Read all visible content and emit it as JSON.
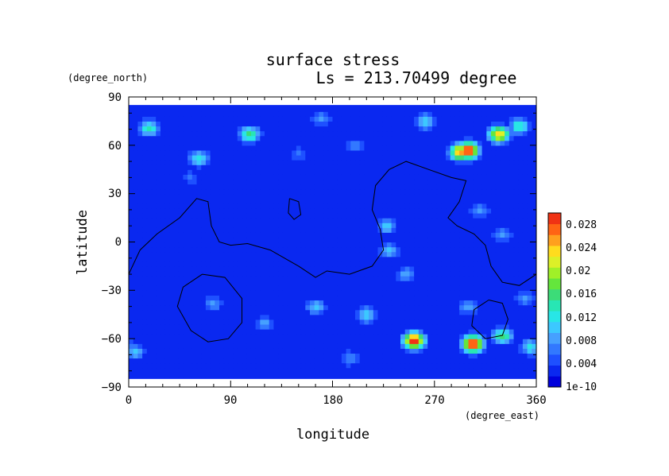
{
  "chart_data": {
    "type": "heatmap",
    "title": "surface stress",
    "subtitle": "Ls = 213.70499 degree",
    "xlabel": "longitude",
    "ylabel": "latitude",
    "x_unit": "(degree_east)",
    "y_unit": "(degree_north)",
    "xlim": [
      0,
      360
    ],
    "ylim": [
      -90,
      90
    ],
    "x_ticks": [
      "0",
      "90",
      "180",
      "270",
      "360"
    ],
    "y_ticks": [
      "90",
      "60",
      "30",
      "0",
      "−30",
      "−60",
      "−90"
    ],
    "colorbar": {
      "labels": [
        "0.028",
        "0.024",
        "0.02",
        "0.016",
        "0.012",
        "0.008",
        "0.004",
        "1e-10"
      ],
      "max": 0.03,
      "colors": [
        "#0000dc",
        "#0a28f0",
        "#1e50ff",
        "#3278ff",
        "#46a0ff",
        "#3cc8ff",
        "#28e6e6",
        "#28e6b4",
        "#3cdc78",
        "#64e63c",
        "#a0f028",
        "#dcf028",
        "#ffdc1e",
        "#ffa01e",
        "#ff6414",
        "#f03214"
      ]
    },
    "hotspots": [
      {
        "lon": 300,
        "lat": 57,
        "value": 0.03
      },
      {
        "lon": 252,
        "lat": -61,
        "value": 0.03
      },
      {
        "lon": 304,
        "lat": -63,
        "value": 0.03
      },
      {
        "lon": 293,
        "lat": 56,
        "value": 0.026
      },
      {
        "lon": 327,
        "lat": 67,
        "value": 0.024
      },
      {
        "lon": 107,
        "lat": 67,
        "value": 0.016
      },
      {
        "lon": 345,
        "lat": 72,
        "value": 0.014
      },
      {
        "lon": 18,
        "lat": 71,
        "value": 0.014
      },
      {
        "lon": 262,
        "lat": 75,
        "value": 0.012
      },
      {
        "lon": 330,
        "lat": -58,
        "value": 0.016
      },
      {
        "lon": 210,
        "lat": -45,
        "value": 0.012
      },
      {
        "lon": 355,
        "lat": -65,
        "value": 0.012
      },
      {
        "lon": 5,
        "lat": -68,
        "value": 0.01
      },
      {
        "lon": 62,
        "lat": 52,
        "value": 0.012
      },
      {
        "lon": 228,
        "lat": 10,
        "value": 0.01
      },
      {
        "lon": 230,
        "lat": -5,
        "value": 0.01
      },
      {
        "lon": 245,
        "lat": -20,
        "value": 0.009
      },
      {
        "lon": 310,
        "lat": 20,
        "value": 0.008
      },
      {
        "lon": 330,
        "lat": 5,
        "value": 0.008
      },
      {
        "lon": 165,
        "lat": -40,
        "value": 0.01
      },
      {
        "lon": 120,
        "lat": -50,
        "value": 0.008
      },
      {
        "lon": 75,
        "lat": -38,
        "value": 0.008
      },
      {
        "lon": 195,
        "lat": -72,
        "value": 0.008
      },
      {
        "lon": 300,
        "lat": -40,
        "value": 0.009
      },
      {
        "lon": 350,
        "lat": -35,
        "value": 0.008
      },
      {
        "lon": 170,
        "lat": 77,
        "value": 0.008
      },
      {
        "lon": 200,
        "lat": 60,
        "value": 0.008
      },
      {
        "lon": 55,
        "lat": 40,
        "value": 0.006
      },
      {
        "lon": 150,
        "lat": 55,
        "value": 0.006
      }
    ],
    "contours": [
      [
        [
          0,
          -20
        ],
        [
          10,
          -5
        ],
        [
          25,
          5
        ],
        [
          45,
          15
        ],
        [
          60,
          27
        ],
        [
          70,
          25
        ],
        [
          73,
          10
        ],
        [
          80,
          0
        ],
        [
          90,
          -2
        ],
        [
          105,
          -1
        ],
        [
          125,
          -5
        ],
        [
          150,
          -15
        ],
        [
          165,
          -22
        ],
        [
          175,
          -18
        ],
        [
          195,
          -20
        ],
        [
          215,
          -15
        ],
        [
          225,
          -5
        ],
        [
          222,
          8
        ],
        [
          215,
          20
        ],
        [
          218,
          35
        ],
        [
          230,
          45
        ],
        [
          245,
          50
        ],
        [
          265,
          45
        ],
        [
          285,
          40
        ],
        [
          298,
          38
        ],
        [
          292,
          25
        ],
        [
          282,
          15
        ],
        [
          290,
          10
        ],
        [
          305,
          5
        ],
        [
          315,
          -2
        ],
        [
          320,
          -15
        ],
        [
          330,
          -25
        ],
        [
          345,
          -27
        ],
        [
          360,
          -20
        ]
      ],
      [
        [
          65,
          -20
        ],
        [
          85,
          -22
        ],
        [
          100,
          -35
        ],
        [
          100,
          -50
        ],
        [
          88,
          -60
        ],
        [
          70,
          -62
        ],
        [
          55,
          -55
        ],
        [
          43,
          -40
        ],
        [
          48,
          -28
        ],
        [
          65,
          -20
        ]
      ],
      [
        [
          142,
          27
        ],
        [
          150,
          25
        ],
        [
          152,
          17
        ],
        [
          146,
          14
        ],
        [
          141,
          18
        ],
        [
          142,
          27
        ]
      ],
      [
        [
          318,
          -36
        ],
        [
          330,
          -38
        ],
        [
          335,
          -48
        ],
        [
          330,
          -58
        ],
        [
          315,
          -60
        ],
        [
          303,
          -52
        ],
        [
          305,
          -42
        ],
        [
          318,
          -36
        ]
      ]
    ]
  }
}
